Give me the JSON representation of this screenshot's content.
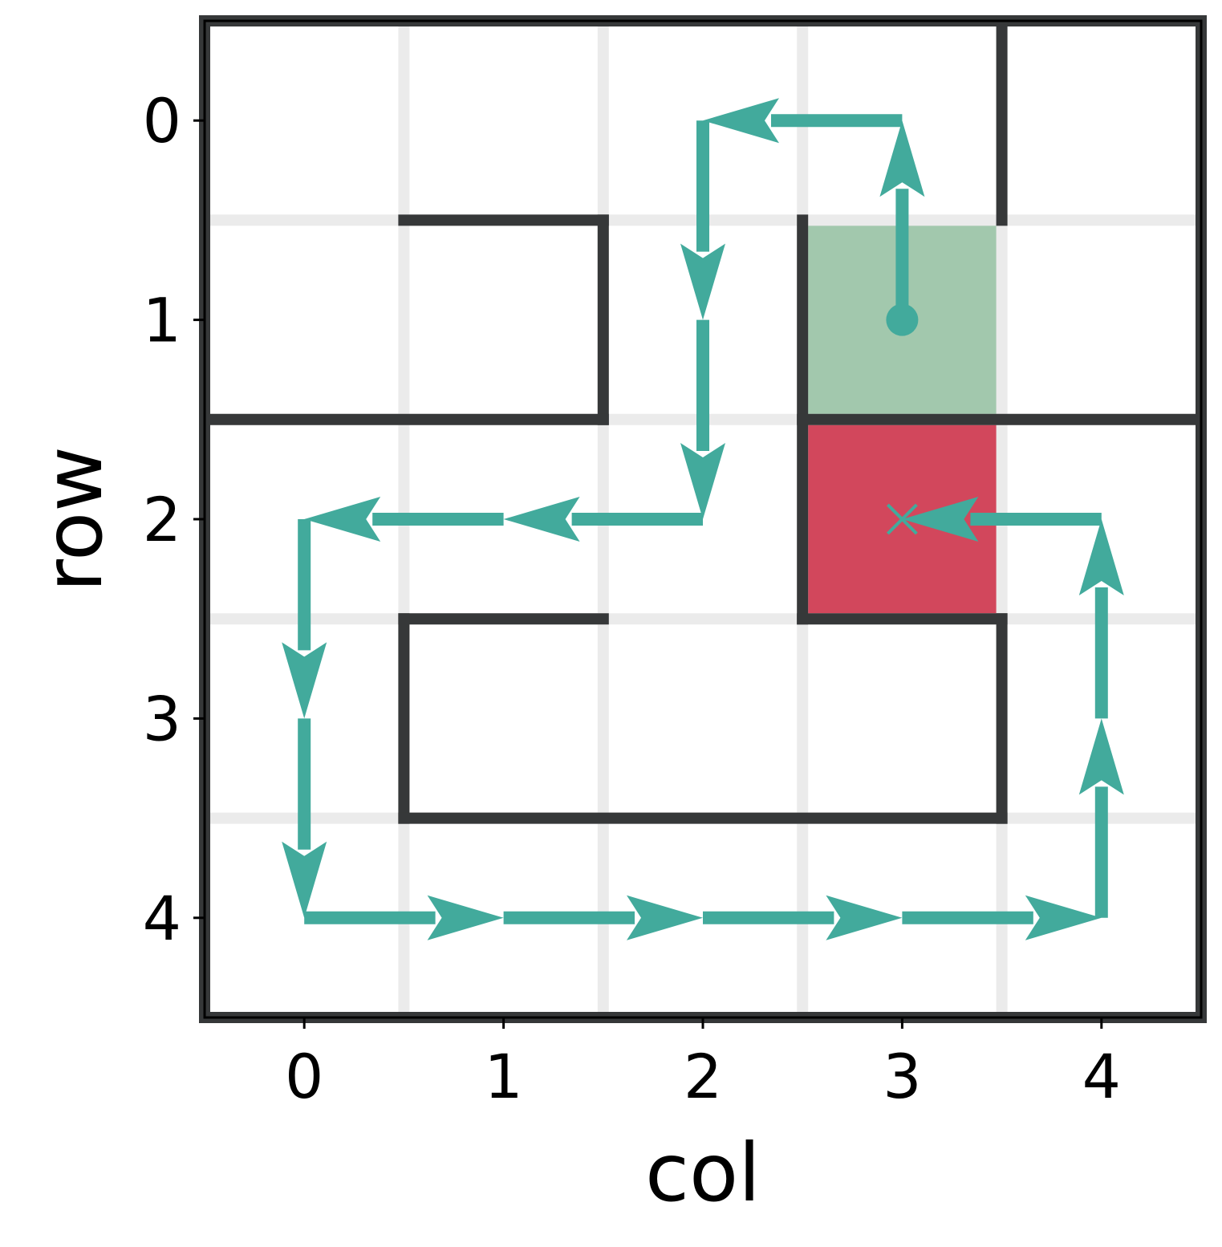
{
  "chart_data": {
    "type": "grid-maze-path",
    "xlabel": "col",
    "ylabel": "row",
    "x_ticks": [
      "0",
      "1",
      "2",
      "3",
      "4"
    ],
    "y_ticks": [
      "0",
      "1",
      "2",
      "3",
      "4"
    ],
    "xlim": [
      -0.5,
      4.5
    ],
    "ylim": [
      4.5,
      -0.5
    ],
    "grid": true,
    "start": {
      "row": 1,
      "col": 3,
      "marker": "circle"
    },
    "goal": {
      "row": 2,
      "col": 3,
      "marker": "x"
    },
    "highlighted_cells": [
      {
        "row": 1,
        "col": 3,
        "role": "start",
        "color": "#a2c8ad"
      },
      {
        "row": 2,
        "col": 3,
        "role": "goal",
        "color": "#d2475c"
      }
    ],
    "walls": [
      {
        "from": [
          -0.5,
          -0.5
        ],
        "to": [
          4.5,
          -0.5
        ]
      },
      {
        "from": [
          4.5,
          -0.5
        ],
        "to": [
          4.5,
          4.5
        ]
      },
      {
        "from": [
          4.5,
          4.5
        ],
        "to": [
          -0.5,
          4.5
        ]
      },
      {
        "from": [
          -0.5,
          4.5
        ],
        "to": [
          -0.5,
          -0.5
        ]
      },
      {
        "from": [
          3.5,
          -0.5
        ],
        "to": [
          3.5,
          0.5
        ]
      },
      {
        "from": [
          0.5,
          0.5
        ],
        "to": [
          1.5,
          0.5
        ]
      },
      {
        "from": [
          1.5,
          0.5
        ],
        "to": [
          1.5,
          1.5
        ]
      },
      {
        "from": [
          -0.5,
          1.5
        ],
        "to": [
          1.5,
          1.5
        ]
      },
      {
        "from": [
          2.5,
          0.5
        ],
        "to": [
          2.5,
          2.5
        ]
      },
      {
        "from": [
          2.5,
          1.5
        ],
        "to": [
          4.5,
          1.5
        ]
      },
      {
        "from": [
          2.5,
          2.5
        ],
        "to": [
          3.5,
          2.5
        ]
      },
      {
        "from": [
          0.5,
          2.5
        ],
        "to": [
          1.5,
          2.5
        ]
      },
      {
        "from": [
          0.5,
          2.5
        ],
        "to": [
          0.5,
          3.5
        ]
      },
      {
        "from": [
          3.5,
          2.5
        ],
        "to": [
          3.5,
          3.5
        ]
      },
      {
        "from": [
          0.5,
          3.5
        ],
        "to": [
          3.5,
          3.5
        ]
      }
    ],
    "path": [
      {
        "row": 1,
        "col": 3
      },
      {
        "row": 0,
        "col": 3
      },
      {
        "row": 0,
        "col": 2
      },
      {
        "row": 1,
        "col": 2
      },
      {
        "row": 2,
        "col": 2
      },
      {
        "row": 2,
        "col": 1
      },
      {
        "row": 2,
        "col": 0
      },
      {
        "row": 3,
        "col": 0
      },
      {
        "row": 4,
        "col": 0
      },
      {
        "row": 4,
        "col": 1
      },
      {
        "row": 4,
        "col": 2
      },
      {
        "row": 4,
        "col": 3
      },
      {
        "row": 4,
        "col": 4
      },
      {
        "row": 3,
        "col": 4
      },
      {
        "row": 2,
        "col": 4
      },
      {
        "row": 2,
        "col": 3
      }
    ],
    "colors": {
      "path": "#42aa9c",
      "wall": "#363839",
      "grid": "#ebebeb",
      "start_cell": "#a2c8ad",
      "goal_cell": "#d2475c"
    }
  }
}
